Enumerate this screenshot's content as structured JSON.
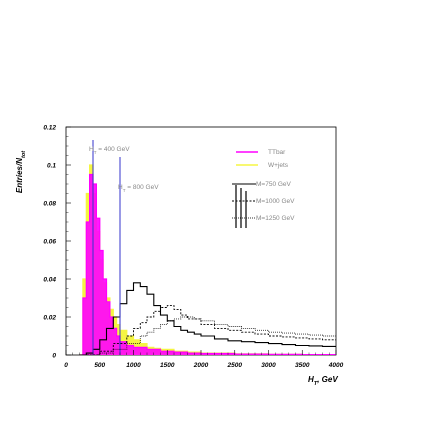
{
  "chart_data": {
    "type": "line",
    "xlabel": "H_T, GeV",
    "ylabel": "Entries/N_tot",
    "xlim": [
      0,
      4000
    ],
    "ylim": [
      0,
      0.12
    ],
    "x_ticks": [
      "0",
      "500",
      "1000",
      "1500",
      "2000",
      "2500",
      "3000",
      "3500",
      "4000"
    ],
    "x_tick_values": [
      0,
      500,
      1000,
      1500,
      2000,
      2500,
      3000,
      3500,
      4000
    ],
    "y_ticks": [
      "0",
      "0.02",
      "0.04",
      "0.06",
      "0.08",
      "0.1",
      "0.12"
    ],
    "y_tick_values": [
      0,
      0.02,
      0.04,
      0.06,
      0.08,
      0.1,
      0.12
    ],
    "annotations": [
      {
        "text": "H_T = 400 GeV",
        "x": 400
      },
      {
        "text": "H_T = 800 GeV",
        "x": 800
      }
    ],
    "series": [
      {
        "name": "TTbar",
        "style": "magenta-fill",
        "x": [
          200,
          250,
          300,
          350,
          400,
          450,
          500,
          550,
          600,
          650,
          700,
          750,
          800,
          900,
          1000,
          1200,
          1400,
          1600,
          1800,
          2000,
          2500,
          3000,
          3500,
          4000
        ],
        "values": [
          0.0,
          0.03,
          0.07,
          0.095,
          0.09,
          0.072,
          0.055,
          0.04,
          0.028,
          0.02,
          0.014,
          0.01,
          0.007,
          0.005,
          0.004,
          0.003,
          0.002,
          0.0015,
          0.001,
          0.0008,
          0.0005,
          0.0003,
          0.0002,
          0.0001
        ]
      },
      {
        "name": "W+jets",
        "style": "yellow-fill",
        "x": [
          200,
          250,
          300,
          350,
          400,
          450,
          500,
          550,
          600,
          650,
          700,
          750,
          800,
          900,
          1000,
          1100,
          1200,
          1300,
          1400,
          1600,
          1800,
          2000,
          2500,
          3000,
          3500,
          4000
        ],
        "values": [
          0.0,
          0.04,
          0.085,
          0.1,
          0.085,
          0.065,
          0.05,
          0.038,
          0.03,
          0.024,
          0.02,
          0.016,
          0.013,
          0.01,
          0.008,
          0.006,
          0.004,
          0.0035,
          0.003,
          0.002,
          0.0015,
          0.001,
          0.0006,
          0.0003,
          0.0002,
          0.0001
        ]
      },
      {
        "name": "M=750 GeV",
        "style": "solid",
        "x": [
          200,
          300,
          400,
          500,
          600,
          700,
          800,
          900,
          1000,
          1050,
          1100,
          1200,
          1300,
          1400,
          1500,
          1600,
          1700,
          1800,
          1900,
          2000,
          2200,
          2400,
          2600,
          2800,
          3000,
          3200,
          3400,
          3600,
          3800,
          4000
        ],
        "values": [
          0.0,
          0.001,
          0.003,
          0.008,
          0.014,
          0.02,
          0.027,
          0.034,
          0.038,
          0.038,
          0.036,
          0.032,
          0.026,
          0.021,
          0.018,
          0.015,
          0.013,
          0.012,
          0.011,
          0.01,
          0.0085,
          0.0075,
          0.007,
          0.0065,
          0.006,
          0.0055,
          0.005,
          0.0048,
          0.0045,
          0.0042
        ]
      },
      {
        "name": "M=1000 GeV",
        "style": "dashed",
        "x": [
          300,
          500,
          700,
          900,
          1000,
          1100,
          1200,
          1300,
          1400,
          1500,
          1600,
          1700,
          1800,
          2000,
          2200,
          2400,
          2600,
          2800,
          3000,
          3200,
          3400,
          3600,
          3800,
          4000
        ],
        "values": [
          0.0,
          0.002,
          0.006,
          0.01,
          0.014,
          0.017,
          0.02,
          0.023,
          0.025,
          0.026,
          0.024,
          0.021,
          0.019,
          0.016,
          0.014,
          0.013,
          0.012,
          0.011,
          0.01,
          0.0095,
          0.009,
          0.0085,
          0.008,
          0.0075
        ]
      },
      {
        "name": "M=1250 GeV",
        "style": "dotted",
        "x": [
          300,
          500,
          700,
          900,
          1100,
          1200,
          1300,
          1400,
          1500,
          1600,
          1700,
          1800,
          1900,
          2000,
          2200,
          2400,
          2600,
          2800,
          3000,
          3200,
          3400,
          3600,
          3800,
          4000
        ],
        "values": [
          0.0,
          0.001,
          0.003,
          0.006,
          0.01,
          0.012,
          0.014,
          0.016,
          0.018,
          0.019,
          0.02,
          0.02,
          0.019,
          0.018,
          0.016,
          0.015,
          0.014,
          0.013,
          0.012,
          0.0115,
          0.011,
          0.0105,
          0.01,
          0.0095
        ]
      }
    ]
  }
}
